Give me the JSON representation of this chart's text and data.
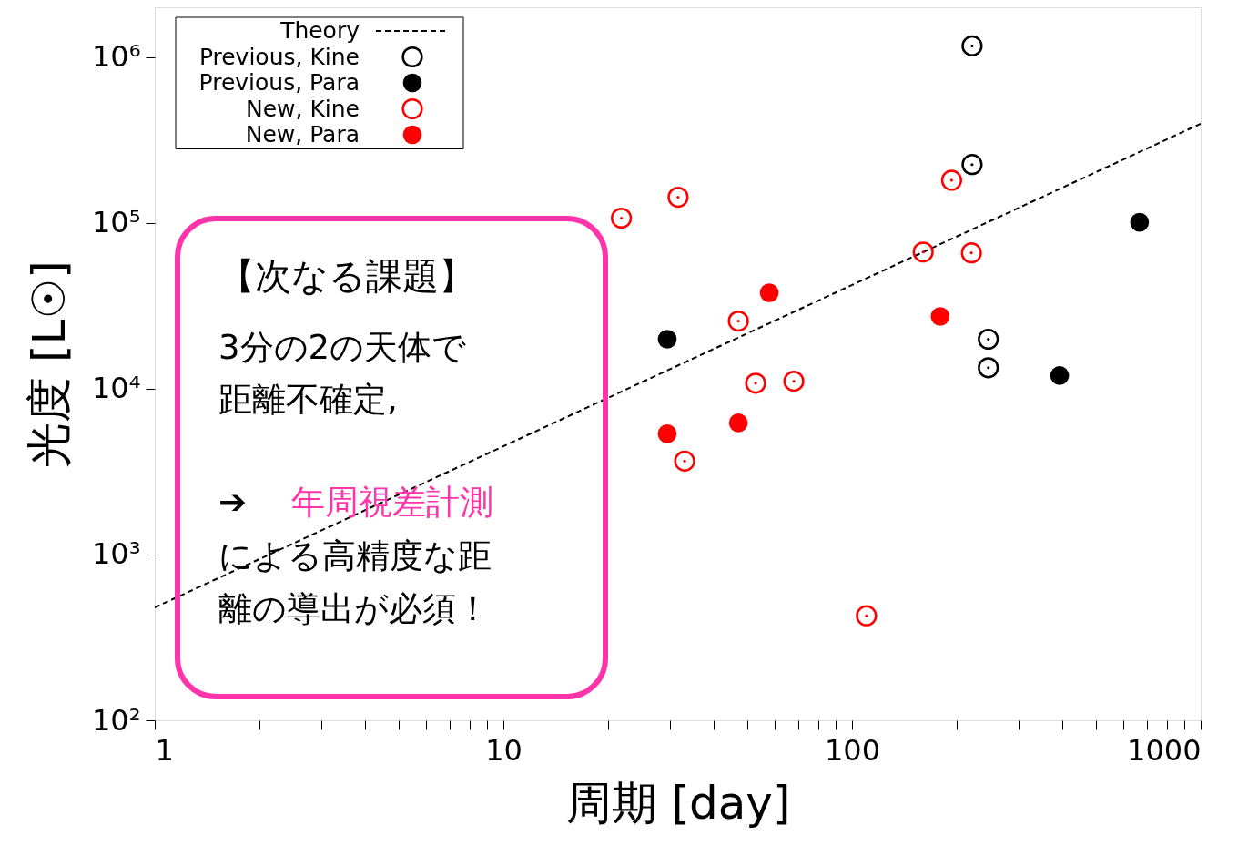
{
  "chart_data": {
    "type": "scatter",
    "xlabel": "周期 [day]",
    "ylabel": "光度 [L☉]",
    "log": "xy",
    "grid": false,
    "legend": "top left",
    "xlim": [
      1,
      1000
    ],
    "ylim": [
      100,
      2000000
    ],
    "xticks": [
      1,
      {
        "value": 2,
        "label": null
      },
      {
        "value": 3,
        "label": null
      },
      {
        "value": 4,
        "label": null
      },
      {
        "value": 5,
        "label": null
      },
      {
        "value": 6,
        "label": null
      },
      {
        "value": 7,
        "label": null
      },
      {
        "value": 8,
        "label": null
      },
      {
        "value": 9,
        "label": null
      },
      10,
      {
        "value": 20,
        "label": null
      },
      {
        "value": 30,
        "label": null
      },
      {
        "value": 40,
        "label": null
      },
      {
        "value": 50,
        "label": null
      },
      {
        "value": 60,
        "label": null
      },
      {
        "value": 70,
        "label": null
      },
      {
        "value": 80,
        "label": null
      },
      {
        "value": 90,
        "label": null
      },
      100,
      {
        "value": 200,
        "label": null
      },
      {
        "value": 300,
        "label": null
      },
      {
        "value": 400,
        "label": null
      },
      {
        "value": 500,
        "label": null
      },
      {
        "value": 600,
        "label": null
      },
      {
        "value": 700,
        "label": null
      },
      {
        "value": 800,
        "label": null
      },
      {
        "value": 900,
        "label": null
      },
      1000
    ],
    "yticks": [
      {
        "value": 100,
        "label": "10²"
      },
      {
        "value": 1000,
        "label": "10³"
      },
      {
        "value": 10000,
        "label": "10⁴"
      },
      {
        "value": 100000,
        "label": "10⁵"
      },
      {
        "value": 1000000,
        "label": "10⁶"
      }
    ],
    "series": [
      {
        "name": "Theory",
        "type": "line",
        "marker": "none",
        "line_style": "dashed",
        "color": "#000000",
        "x": [
          1,
          1000
        ],
        "values": [
          479,
          397000
        ]
      },
      {
        "name": "Previous, Kine",
        "marker": "circle",
        "color": "#000000",
        "x": [
          221,
          221,
          246,
          246
        ],
        "values": [
          1170000,
          225000,
          19900,
          13400
        ]
      },
      {
        "name": "Previous, Para",
        "marker": "circle",
        "color": "#000000",
        "x": [
          29.5,
          668,
          394
        ],
        "values": [
          19900,
          101000,
          12000
        ]
      },
      {
        "name": "New, Kine",
        "marker": "circle",
        "color": "#ff0000",
        "x": [
          21.8,
          31.7,
          47.2,
          52.9,
          68.1,
          33.1,
          110,
          160,
          193,
          220
        ],
        "values": [
          107000,
          143000,
          25600,
          10800,
          11100,
          3660,
          427,
          66800,
          181000,
          66000
        ]
      },
      {
        "name": "New, Para",
        "marker": "circle",
        "color": "#ff0000",
        "x": [
          57.9,
          179,
          29.5,
          47.2
        ],
        "values": [
          37900,
          27300,
          5350,
          6220
        ]
      }
    ],
    "annotations": [
      "【次なる課題】",
      "3分の2の天体で",
      "距離不確定,",
      "➔",
      "年周視差計測",
      "による高精度な距",
      "離の導出が必須！"
    ]
  }
}
